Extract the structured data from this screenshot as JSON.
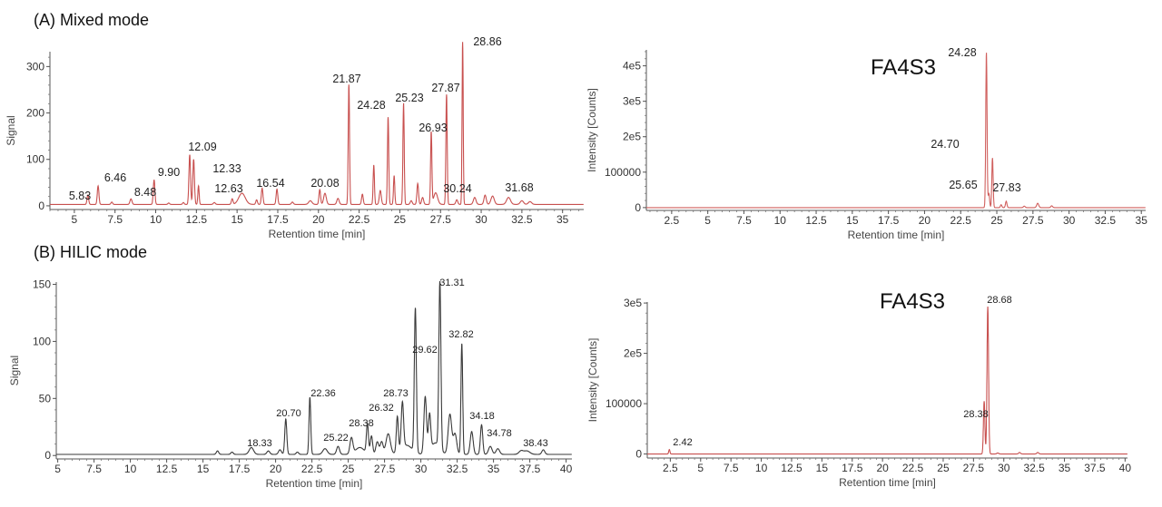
{
  "chart_data": [
    {
      "type": "line",
      "panel_title": "(A) Mixed mode",
      "xlabel": "Retention time [min]",
      "ylabel": "Signal",
      "xlim": [
        3.5,
        36.3
      ],
      "ylim": [
        -8,
        332
      ],
      "xticks": [
        5,
        7.5,
        10,
        12.5,
        15,
        17.5,
        20,
        22.5,
        25,
        27.5,
        30,
        32.5,
        35
      ],
      "xtick_labels": [
        "5",
        "7.5",
        "10",
        "12.5",
        "15",
        "17.5",
        "20",
        "22.5",
        "25",
        "27.5",
        "30",
        "32.5",
        "35"
      ],
      "yticks": [
        0,
        100,
        200,
        300
      ],
      "ytick_labels": [
        "0",
        "100",
        "200",
        "300"
      ],
      "color": "#c8504f",
      "baseline": 3,
      "peaks": [
        [
          5.83,
          20,
          0.05
        ],
        [
          6.46,
          40,
          0.05
        ],
        [
          7.3,
          5,
          0.05
        ],
        [
          8.48,
          12,
          0.06
        ],
        [
          9.9,
          53,
          0.05
        ],
        [
          10.8,
          3,
          0.05
        ],
        [
          11.7,
          4,
          0.05
        ],
        [
          12.09,
          107,
          0.05
        ],
        [
          12.33,
          97,
          0.05
        ],
        [
          12.63,
          40,
          0.04
        ],
        [
          13.6,
          4,
          0.06
        ],
        [
          14.7,
          12,
          0.05
        ],
        [
          15.3,
          24,
          0.2
        ],
        [
          16.2,
          10,
          0.05
        ],
        [
          16.54,
          35,
          0.05
        ],
        [
          17.45,
          33,
          0.05
        ],
        [
          18.4,
          5,
          0.06
        ],
        [
          19.5,
          8,
          0.1
        ],
        [
          20.08,
          32,
          0.05
        ],
        [
          20.4,
          24,
          0.08
        ],
        [
          21.2,
          13,
          0.07
        ],
        [
          21.87,
          258,
          0.04
        ],
        [
          22.7,
          22,
          0.05
        ],
        [
          23.4,
          85,
          0.04
        ],
        [
          23.8,
          30,
          0.06
        ],
        [
          24.28,
          188,
          0.04
        ],
        [
          24.65,
          62,
          0.04
        ],
        [
          25.23,
          218,
          0.04
        ],
        [
          25.7,
          8,
          0.06
        ],
        [
          26.1,
          45,
          0.05
        ],
        [
          26.4,
          15,
          0.06
        ],
        [
          26.93,
          155,
          0.04
        ],
        [
          27.2,
          25,
          0.12
        ],
        [
          27.87,
          237,
          0.04
        ],
        [
          28.5,
          10,
          0.06
        ],
        [
          28.86,
          350,
          0.035
        ],
        [
          29.6,
          15,
          0.08
        ],
        [
          30.24,
          20,
          0.07
        ],
        [
          30.7,
          18,
          0.1
        ],
        [
          31.68,
          15,
          0.12
        ],
        [
          32.5,
          8,
          0.1
        ],
        [
          33.0,
          6,
          0.1
        ]
      ],
      "labels": [
        "5.83",
        "6.46",
        "8.48",
        "9.90",
        "12.09",
        "12.33",
        "12.63",
        "16.54",
        "20.08",
        "21.87",
        "24.28",
        "25.23",
        "26.93",
        "27.87",
        "28.86",
        "30.24",
        "31.68"
      ]
    },
    {
      "type": "line",
      "panel_title": "(B) HILIC mode",
      "xlabel": "Retention time [min]",
      "ylabel": "Signal",
      "xlim": [
        4.9,
        40.4
      ],
      "ylim": [
        -3,
        152
      ],
      "xticks": [
        5,
        7.5,
        10,
        12.5,
        15,
        17.5,
        20,
        22.5,
        25,
        27.5,
        30,
        32.5,
        35,
        37.5,
        40
      ],
      "xtick_labels": [
        "5",
        "7.5",
        "10",
        "12.5",
        "15",
        "17.5",
        "20",
        "22.5",
        "25",
        "27.5",
        "30",
        "32.5",
        "35",
        "37.5",
        "40"
      ],
      "yticks": [
        0,
        50,
        100,
        150
      ],
      "ytick_labels": [
        "0",
        "50",
        "100",
        "150"
      ],
      "color": "#3a3a3a",
      "baseline": 1,
      "peaks": [
        [
          16,
          3,
          0.08
        ],
        [
          17,
          2,
          0.08
        ],
        [
          18.33,
          6,
          0.15
        ],
        [
          19.5,
          3,
          0.1
        ],
        [
          20.3,
          4,
          0.1
        ],
        [
          20.7,
          31,
          0.07
        ],
        [
          21.5,
          2,
          0.08
        ],
        [
          22.36,
          50,
          0.06
        ],
        [
          23.4,
          5,
          0.15
        ],
        [
          24.3,
          7,
          0.1
        ],
        [
          25.22,
          14,
          0.1
        ],
        [
          25.8,
          6,
          0.3
        ],
        [
          26.32,
          26,
          0.07
        ],
        [
          26.6,
          16,
          0.08
        ],
        [
          27.0,
          11,
          0.1
        ],
        [
          27.3,
          11,
          0.1
        ],
        [
          27.75,
          18,
          0.15
        ],
        [
          28.38,
          31,
          0.07
        ],
        [
          28.73,
          40,
          0.08
        ],
        [
          29.0,
          8,
          0.4
        ],
        [
          29.62,
          126,
          0.07
        ],
        [
          30.3,
          50,
          0.09
        ],
        [
          30.6,
          32,
          0.08
        ],
        [
          31.0,
          10,
          0.3
        ],
        [
          31.31,
          146,
          0.07
        ],
        [
          32.0,
          35,
          0.12
        ],
        [
          32.35,
          18,
          0.12
        ],
        [
          32.82,
          97,
          0.06
        ],
        [
          33.5,
          20,
          0.1
        ],
        [
          34.18,
          26,
          0.08
        ],
        [
          34.78,
          7,
          0.12
        ],
        [
          35.3,
          5,
          0.12
        ],
        [
          36.9,
          3,
          0.15
        ],
        [
          37.3,
          3,
          0.2
        ],
        [
          38.43,
          4,
          0.1
        ]
      ],
      "labels": [
        "18.33",
        "20.70",
        "22.36",
        "25.22",
        "28.38",
        "26.32",
        "28.73",
        "29.62",
        "31.31",
        "32.82",
        "34.18",
        "34.78",
        "38.43"
      ]
    },
    {
      "type": "line",
      "panel_title": "",
      "annotation": "FA4S3",
      "xlabel": "Retention time [min]",
      "ylabel": "Intensity [Counts]",
      "xlim": [
        0.75,
        35.3
      ],
      "ylim": [
        -8000,
        445000
      ],
      "xticks": [
        2.5,
        5,
        7.5,
        10,
        12.5,
        15,
        17.5,
        20,
        22.5,
        25,
        27.5,
        30,
        32.5,
        35
      ],
      "xtick_labels": [
        "2.5",
        "5",
        "7.5",
        "10",
        "12.5",
        "15",
        "17.5",
        "20",
        "22.5",
        "25",
        "27.5",
        "30",
        "32.5",
        "35"
      ],
      "yticks": [
        0,
        100000,
        200000,
        300000,
        400000
      ],
      "ytick_labels": [
        "0",
        "100000",
        "2e5",
        "3e5",
        "4e5"
      ],
      "color": "#d0605e",
      "baseline": 0,
      "peaks": [
        [
          24.28,
          437000,
          0.045
        ],
        [
          24.45,
          40000,
          0.05
        ],
        [
          24.7,
          140000,
          0.045
        ],
        [
          25.3,
          8000,
          0.05
        ],
        [
          25.65,
          18000,
          0.05
        ],
        [
          26.9,
          4000,
          0.06
        ],
        [
          27.83,
          12000,
          0.07
        ],
        [
          28.8,
          5000,
          0.06
        ]
      ],
      "labels": [
        "24.28",
        "24.70",
        "25.65",
        "27.83"
      ]
    },
    {
      "type": "line",
      "panel_title": "",
      "annotation": "FA4S3",
      "xlabel": "Retention time [min]",
      "ylabel": "Intensity [Counts]",
      "xlim": [
        0.6,
        40.2
      ],
      "ylim": [
        -8000,
        302000
      ],
      "xticks": [
        2.5,
        5,
        7.5,
        10,
        12.5,
        15,
        17.5,
        20,
        22.5,
        25,
        27.5,
        30,
        32.5,
        35,
        37.5,
        40
      ],
      "xtick_labels": [
        "2.5",
        "5",
        "7.5",
        "10",
        "12.5",
        "15",
        "17.5",
        "20",
        "22.5",
        "25",
        "27.5",
        "30",
        "32.5",
        "35",
        "37.5",
        "40"
      ],
      "yticks": [
        0,
        100000,
        200000,
        300000
      ],
      "ytick_labels": [
        "0",
        "100000",
        "2e5",
        "3e5"
      ],
      "color": "#c8504f",
      "baseline": 0,
      "peaks": [
        [
          2.42,
          9000,
          0.05
        ],
        [
          28.38,
          105000,
          0.06
        ],
        [
          28.68,
          293000,
          0.065
        ],
        [
          29.5,
          2000,
          0.08
        ],
        [
          31.3,
          3000,
          0.08
        ],
        [
          32.8,
          3000,
          0.08
        ]
      ],
      "labels": [
        "2.42",
        "28.38",
        "28.68"
      ]
    }
  ]
}
